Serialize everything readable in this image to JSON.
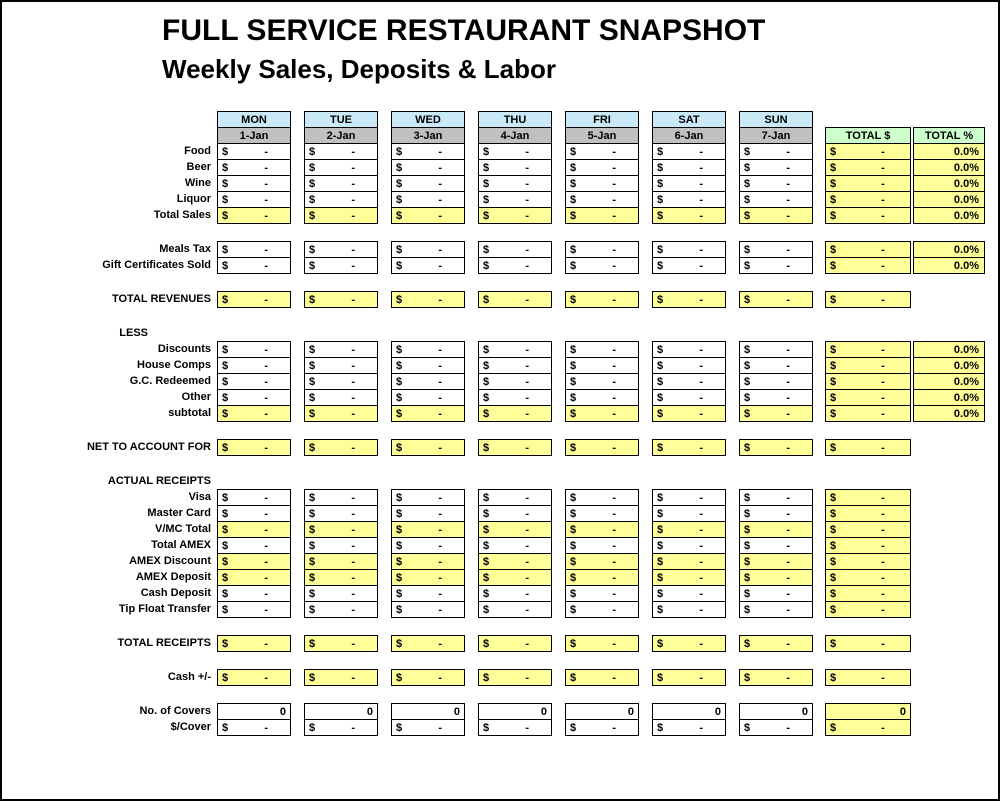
{
  "title": "FULL SERVICE RESTAURANT SNAPSHOT",
  "subtitle": "Weekly Sales, Deposits & Labor",
  "header": {
    "days": [
      "MON",
      "TUE",
      "WED",
      "THU",
      "FRI",
      "SAT",
      "SUN"
    ],
    "dates": [
      "1-Jan",
      "2-Jan",
      "3-Jan",
      "4-Jan",
      "5-Jan",
      "6-Jan",
      "7-Jan"
    ],
    "total_dollar": "TOTAL $",
    "total_percent": "TOTAL %"
  },
  "placeholders": {
    "currency_symbol": "$",
    "empty_amount": "-",
    "zero_count": "0"
  },
  "colors": {
    "highlight_yellow": "#FFFF99",
    "day_header_blue": "#C9E9F6",
    "date_header_gray": "#C0C0C0",
    "total_header_green": "#CCFFCC"
  },
  "rows": [
    {
      "id": "food",
      "label": "Food",
      "type": "currency",
      "highlight": false,
      "percent": "0.0%"
    },
    {
      "id": "beer",
      "label": "Beer",
      "type": "currency",
      "highlight": false,
      "percent": "0.0%"
    },
    {
      "id": "wine",
      "label": "Wine",
      "type": "currency",
      "highlight": false,
      "percent": "0.0%"
    },
    {
      "id": "liquor",
      "label": "Liquor",
      "type": "currency",
      "highlight": false,
      "percent": "0.0%"
    },
    {
      "id": "total-sales",
      "label": "Total Sales",
      "type": "currency",
      "highlight": true,
      "percent": "0.0%"
    },
    {
      "type": "gap"
    },
    {
      "id": "meals-tax",
      "label": "Meals Tax",
      "type": "currency",
      "highlight": false,
      "percent": "0.0%"
    },
    {
      "id": "gift-certificates-sold",
      "label": "Gift Certificates Sold",
      "type": "currency",
      "highlight": false,
      "percent": "0.0%"
    },
    {
      "type": "gap"
    },
    {
      "id": "total-revenues",
      "label": "TOTAL REVENUES",
      "type": "currency",
      "highlight": true,
      "percent": null
    },
    {
      "type": "gap"
    },
    {
      "id": "less",
      "label": "LESS",
      "type": "heading"
    },
    {
      "id": "discounts",
      "label": "Discounts",
      "type": "currency",
      "highlight": false,
      "percent": "0.0%"
    },
    {
      "id": "house-comps",
      "label": "House Comps",
      "type": "currency",
      "highlight": false,
      "percent": "0.0%"
    },
    {
      "id": "gc-redeemed",
      "label": "G.C. Redeemed",
      "type": "currency",
      "highlight": false,
      "percent": "0.0%"
    },
    {
      "id": "other",
      "label": "Other",
      "type": "currency",
      "highlight": false,
      "percent": "0.0%"
    },
    {
      "id": "subtotal",
      "label": "subtotal",
      "type": "currency",
      "highlight": true,
      "percent": "0.0%"
    },
    {
      "type": "gap"
    },
    {
      "id": "net-to-account-for",
      "label": "NET TO ACCOUNT FOR",
      "type": "currency",
      "highlight": true,
      "percent": null
    },
    {
      "type": "gap"
    },
    {
      "id": "actual-receipts",
      "label": "ACTUAL RECEIPTS",
      "type": "heading"
    },
    {
      "id": "visa",
      "label": "Visa",
      "type": "currency",
      "highlight": false,
      "percent": null
    },
    {
      "id": "master-card",
      "label": "Master Card",
      "type": "currency",
      "highlight": false,
      "percent": null
    },
    {
      "id": "vmc-total",
      "label": "V/MC Total",
      "type": "currency",
      "highlight": true,
      "percent": null
    },
    {
      "id": "total-amex",
      "label": "Total AMEX",
      "type": "currency",
      "highlight": false,
      "percent": null
    },
    {
      "id": "amex-discount",
      "label": "AMEX Discount",
      "type": "currency",
      "highlight": true,
      "percent": null
    },
    {
      "id": "amex-deposit",
      "label": "AMEX Deposit",
      "type": "currency",
      "highlight": true,
      "percent": null
    },
    {
      "id": "cash-deposit",
      "label": "Cash Deposit",
      "type": "currency",
      "highlight": false,
      "percent": null
    },
    {
      "id": "tip-float-transfer",
      "label": "Tip Float Transfer",
      "type": "currency",
      "highlight": false,
      "percent": null
    },
    {
      "type": "gap"
    },
    {
      "id": "total-receipts",
      "label": "TOTAL RECEIPTS",
      "type": "currency",
      "highlight": true,
      "percent": null
    },
    {
      "type": "gap"
    },
    {
      "id": "cash-plus-minus",
      "label": "Cash +/-",
      "type": "currency",
      "highlight": true,
      "percent": null
    },
    {
      "type": "gap"
    },
    {
      "id": "no-of-covers",
      "label": "No. of Covers",
      "type": "count",
      "highlight": false,
      "percent": null
    },
    {
      "id": "dollar-per-cover",
      "label": "$/Cover",
      "type": "currency",
      "highlight": false,
      "percent": null
    }
  ]
}
